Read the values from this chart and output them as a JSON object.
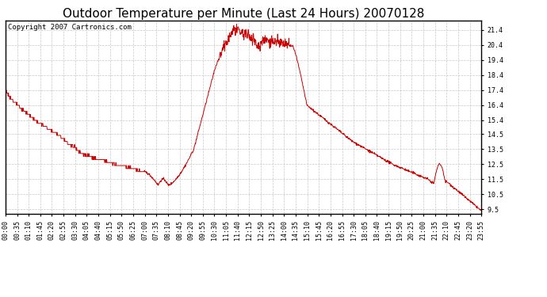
{
  "title": "Outdoor Temperature per Minute (Last 24 Hours) 20070128",
  "copyright_text": "Copyright 2007 Cartronics.com",
  "line_color": "#cc0000",
  "background_color": "#ffffff",
  "grid_color": "#c8c8c8",
  "title_fontsize": 11,
  "copyright_fontsize": 6.5,
  "tick_fontsize": 6,
  "ylim": [
    9.2,
    22.0
  ],
  "yticks": [
    9.5,
    10.5,
    11.5,
    12.5,
    13.5,
    14.5,
    15.4,
    16.4,
    17.4,
    18.4,
    19.4,
    20.4,
    21.4
  ],
  "xtick_labels": [
    "00:00",
    "00:35",
    "01:10",
    "01:45",
    "02:20",
    "02:55",
    "03:30",
    "04:05",
    "04:40",
    "05:15",
    "05:50",
    "06:25",
    "07:00",
    "07:35",
    "08:10",
    "08:45",
    "09:20",
    "09:55",
    "10:30",
    "11:05",
    "11:40",
    "12:15",
    "12:50",
    "13:25",
    "14:00",
    "14:35",
    "15:10",
    "15:45",
    "16:20",
    "16:55",
    "17:30",
    "18:05",
    "18:40",
    "19:15",
    "19:50",
    "20:25",
    "21:00",
    "21:35",
    "22:10",
    "22:45",
    "23:20",
    "23:55"
  ]
}
